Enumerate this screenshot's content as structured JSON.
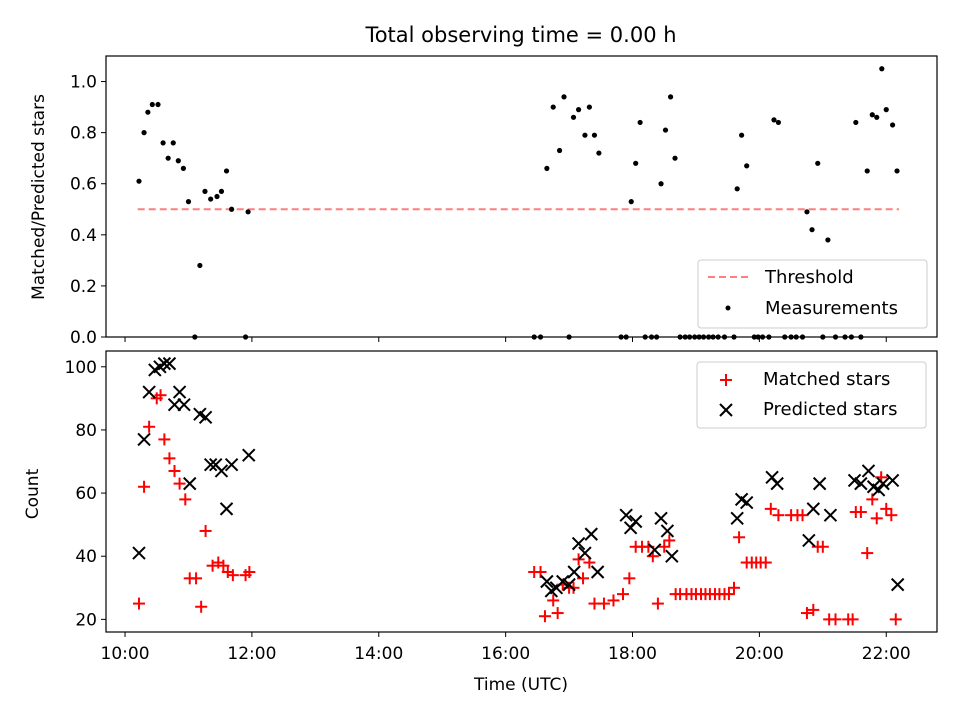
{
  "chart_data": [
    {
      "type": "scatter",
      "title": "Total observing time = 0.00 h",
      "xlabel": "",
      "ylabel": "Matched/Predicted stars",
      "xlim": [
        9.7,
        22.8
      ],
      "ylim": [
        0.0,
        1.1
      ],
      "yticks": [
        "0.0",
        "0.2",
        "0.4",
        "0.6",
        "0.8",
        "1.0"
      ],
      "grid": false,
      "legend_position": "lower-right",
      "threshold": {
        "name": "Threshold",
        "y": 0.5,
        "x_range": [
          10.2,
          22.2
        ],
        "color": "#ff7f7f",
        "style": "dashed"
      },
      "series": [
        {
          "name": "Measurements",
          "color": "#000000",
          "marker": "dot",
          "points": [
            [
              10.22,
              0.61
            ],
            [
              10.3,
              0.8
            ],
            [
              10.36,
              0.88
            ],
            [
              10.43,
              0.91
            ],
            [
              10.52,
              0.91
            ],
            [
              10.6,
              0.76
            ],
            [
              10.68,
              0.7
            ],
            [
              10.76,
              0.76
            ],
            [
              10.84,
              0.69
            ],
            [
              10.92,
              0.66
            ],
            [
              11.0,
              0.53
            ],
            [
              11.1,
              0.0
            ],
            [
              11.18,
              0.28
            ],
            [
              11.26,
              0.57
            ],
            [
              11.35,
              0.54
            ],
            [
              11.45,
              0.55
            ],
            [
              11.52,
              0.57
            ],
            [
              11.6,
              0.65
            ],
            [
              11.68,
              0.5
            ],
            [
              11.9,
              0.0
            ],
            [
              11.94,
              0.49
            ],
            [
              16.45,
              0.0
            ],
            [
              16.55,
              0.0
            ],
            [
              16.65,
              0.66
            ],
            [
              16.75,
              0.9
            ],
            [
              16.85,
              0.73
            ],
            [
              16.92,
              0.94
            ],
            [
              17.0,
              0.0
            ],
            [
              17.07,
              0.86
            ],
            [
              17.15,
              0.89
            ],
            [
              17.25,
              0.79
            ],
            [
              17.32,
              0.9
            ],
            [
              17.4,
              0.79
            ],
            [
              17.47,
              0.72
            ],
            [
              17.82,
              0.0
            ],
            [
              17.9,
              0.0
            ],
            [
              17.98,
              0.53
            ],
            [
              18.05,
              0.68
            ],
            [
              18.12,
              0.84
            ],
            [
              18.2,
              0.0
            ],
            [
              18.3,
              0.0
            ],
            [
              18.38,
              0.0
            ],
            [
              18.45,
              0.6
            ],
            [
              18.52,
              0.81
            ],
            [
              18.6,
              0.94
            ],
            [
              18.67,
              0.7
            ],
            [
              18.75,
              0.0
            ],
            [
              18.83,
              0.0
            ],
            [
              18.9,
              0.0
            ],
            [
              18.98,
              0.0
            ],
            [
              19.05,
              0.0
            ],
            [
              19.12,
              0.0
            ],
            [
              19.2,
              0.0
            ],
            [
              19.27,
              0.0
            ],
            [
              19.35,
              0.0
            ],
            [
              19.45,
              0.0
            ],
            [
              19.6,
              0.0
            ],
            [
              19.65,
              0.58
            ],
            [
              19.72,
              0.79
            ],
            [
              19.8,
              0.67
            ],
            [
              19.92,
              0.0
            ],
            [
              19.98,
              0.0
            ],
            [
              20.05,
              0.0
            ],
            [
              20.15,
              0.0
            ],
            [
              20.23,
              0.85
            ],
            [
              20.3,
              0.84
            ],
            [
              20.4,
              0.0
            ],
            [
              20.5,
              0.0
            ],
            [
              20.58,
              0.0
            ],
            [
              20.68,
              0.0
            ],
            [
              20.75,
              0.49
            ],
            [
              20.83,
              0.42
            ],
            [
              20.92,
              0.68
            ],
            [
              21.0,
              0.0
            ],
            [
              21.08,
              0.38
            ],
            [
              21.2,
              0.0
            ],
            [
              21.35,
              0.0
            ],
            [
              21.45,
              0.0
            ],
            [
              21.52,
              0.84
            ],
            [
              21.6,
              0.0
            ],
            [
              21.7,
              0.65
            ],
            [
              21.78,
              0.87
            ],
            [
              21.85,
              0.86
            ],
            [
              21.93,
              1.05
            ],
            [
              22.0,
              0.89
            ],
            [
              22.1,
              0.83
            ],
            [
              22.17,
              0.65
            ]
          ]
        }
      ]
    },
    {
      "type": "scatter",
      "title": "",
      "xlabel": "Time (UTC)",
      "ylabel": "Count",
      "xlim": [
        9.7,
        22.8
      ],
      "ylim": [
        16,
        105
      ],
      "yticks": [
        "20",
        "40",
        "60",
        "80",
        "100"
      ],
      "xticks": [
        {
          "x": 10,
          "label": "10:00"
        },
        {
          "x": 12,
          "label": "12:00"
        },
        {
          "x": 14,
          "label": "14:00"
        },
        {
          "x": 16,
          "label": "16:00"
        },
        {
          "x": 18,
          "label": "18:00"
        },
        {
          "x": 20,
          "label": "20:00"
        },
        {
          "x": 22,
          "label": "22:00"
        }
      ],
      "grid": false,
      "legend_position": "upper-right",
      "series": [
        {
          "name": "Matched stars",
          "color": "#ff0000",
          "marker": "plus",
          "points": [
            [
              10.22,
              25
            ],
            [
              10.3,
              62
            ],
            [
              10.38,
              81
            ],
            [
              10.5,
              90
            ],
            [
              10.56,
              91
            ],
            [
              10.62,
              77
            ],
            [
              10.7,
              71
            ],
            [
              10.78,
              67
            ],
            [
              10.86,
              63
            ],
            [
              10.95,
              58
            ],
            [
              11.02,
              33
            ],
            [
              11.12,
              33
            ],
            [
              11.2,
              24
            ],
            [
              11.27,
              48
            ],
            [
              11.38,
              37
            ],
            [
              11.47,
              38
            ],
            [
              11.55,
              37
            ],
            [
              11.62,
              35
            ],
            [
              11.7,
              34
            ],
            [
              11.9,
              34
            ],
            [
              11.96,
              35
            ],
            [
              16.45,
              35
            ],
            [
              16.55,
              35
            ],
            [
              16.62,
              21
            ],
            [
              16.75,
              26
            ],
            [
              16.82,
              22
            ],
            [
              16.9,
              31
            ],
            [
              17.0,
              30
            ],
            [
              17.07,
              30
            ],
            [
              17.15,
              39
            ],
            [
              17.22,
              33
            ],
            [
              17.32,
              38
            ],
            [
              17.4,
              25
            ],
            [
              17.55,
              25
            ],
            [
              17.7,
              26
            ],
            [
              17.85,
              28
            ],
            [
              17.95,
              33
            ],
            [
              18.05,
              43
            ],
            [
              18.15,
              43
            ],
            [
              18.25,
              43
            ],
            [
              18.32,
              40
            ],
            [
              18.4,
              25
            ],
            [
              18.5,
              43
            ],
            [
              18.58,
              45
            ],
            [
              18.68,
              28
            ],
            [
              18.75,
              28
            ],
            [
              18.85,
              28
            ],
            [
              18.93,
              28
            ],
            [
              19.0,
              28
            ],
            [
              19.08,
              28
            ],
            [
              19.15,
              28
            ],
            [
              19.22,
              28
            ],
            [
              19.3,
              28
            ],
            [
              19.37,
              28
            ],
            [
              19.45,
              28
            ],
            [
              19.52,
              28
            ],
            [
              19.6,
              30
            ],
            [
              19.68,
              46
            ],
            [
              19.8,
              38
            ],
            [
              19.88,
              38
            ],
            [
              19.95,
              38
            ],
            [
              20.02,
              38
            ],
            [
              20.1,
              38
            ],
            [
              20.18,
              55
            ],
            [
              20.3,
              53
            ],
            [
              20.5,
              53
            ],
            [
              20.6,
              53
            ],
            [
              20.68,
              53
            ],
            [
              20.75,
              22
            ],
            [
              20.85,
              23
            ],
            [
              20.92,
              43
            ],
            [
              21.0,
              43
            ],
            [
              21.1,
              20
            ],
            [
              21.2,
              20
            ],
            [
              21.4,
              20
            ],
            [
              21.47,
              20
            ],
            [
              21.52,
              54
            ],
            [
              21.6,
              54
            ],
            [
              21.7,
              41
            ],
            [
              21.78,
              58
            ],
            [
              21.85,
              52
            ],
            [
              21.92,
              65
            ],
            [
              22.0,
              55
            ],
            [
              22.08,
              53
            ],
            [
              22.15,
              20
            ]
          ]
        },
        {
          "name": "Predicted stars",
          "color": "#000000",
          "marker": "x",
          "points": [
            [
              10.22,
              41
            ],
            [
              10.3,
              77
            ],
            [
              10.38,
              92
            ],
            [
              10.47,
              99
            ],
            [
              10.55,
              100
            ],
            [
              10.62,
              101
            ],
            [
              10.7,
              101
            ],
            [
              10.78,
              88
            ],
            [
              10.86,
              92
            ],
            [
              10.93,
              88
            ],
            [
              11.02,
              63
            ],
            [
              11.18,
              85
            ],
            [
              11.27,
              84
            ],
            [
              11.35,
              69
            ],
            [
              11.43,
              69
            ],
            [
              11.52,
              67
            ],
            [
              11.6,
              55
            ],
            [
              11.68,
              69
            ],
            [
              11.95,
              72
            ],
            [
              16.65,
              32
            ],
            [
              16.72,
              29
            ],
            [
              16.8,
              30
            ],
            [
              16.9,
              32
            ],
            [
              17.0,
              31
            ],
            [
              17.08,
              35
            ],
            [
              17.15,
              44
            ],
            [
              17.25,
              41
            ],
            [
              17.35,
              47
            ],
            [
              17.45,
              35
            ],
            [
              17.9,
              53
            ],
            [
              17.97,
              49
            ],
            [
              18.05,
              51
            ],
            [
              18.35,
              42
            ],
            [
              18.45,
              52
            ],
            [
              18.55,
              48
            ],
            [
              18.62,
              40
            ],
            [
              19.65,
              52
            ],
            [
              19.72,
              58
            ],
            [
              19.8,
              57
            ],
            [
              20.2,
              65
            ],
            [
              20.28,
              63
            ],
            [
              20.78,
              45
            ],
            [
              20.85,
              55
            ],
            [
              20.95,
              63
            ],
            [
              21.12,
              53
            ],
            [
              21.5,
              64
            ],
            [
              21.6,
              63
            ],
            [
              21.72,
              67
            ],
            [
              21.8,
              62
            ],
            [
              21.88,
              61
            ],
            [
              21.95,
              63
            ],
            [
              22.1,
              64
            ],
            [
              22.18,
              31
            ]
          ]
        }
      ]
    }
  ]
}
